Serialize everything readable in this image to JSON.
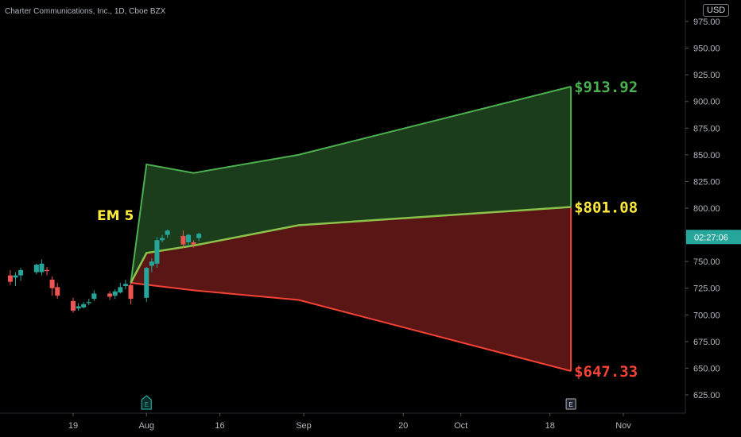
{
  "header": {
    "symbol_title": "Charter Communications, Inc., 1D, Cboe BZX",
    "currency": "USD"
  },
  "colors": {
    "background": "#000000",
    "axis_text": "#b2b5be",
    "up_candle": "#26a69a",
    "down_candle": "#ef5350",
    "upper_band_fill": "#1b3d1c",
    "lower_band_fill": "#5a1614",
    "upper_line": "#4caf50",
    "mid_line": "#8bc34a",
    "lower_line": "#f44336",
    "label_upper": "#4caf50",
    "label_mid": "#ffeb3b",
    "label_lower": "#f44336",
    "countdown_bg": "#26a69a"
  },
  "chart_data": {
    "type": "line",
    "y_axis": {
      "ticks": [
        "975.00",
        "950.00",
        "925.00",
        "900.00",
        "875.00",
        "850.00",
        "825.00",
        "800.00",
        "775.00",
        "750.00",
        "725.00",
        "700.00",
        "675.00",
        "650.00",
        "625.00"
      ],
      "range": [
        615,
        985
      ]
    },
    "x_axis": {
      "ticks": [
        {
          "label": "19",
          "date": "2021-07-19"
        },
        {
          "label": "Aug",
          "date": "2021-08-02"
        },
        {
          "label": "16",
          "date": "2021-08-16"
        },
        {
          "label": "Sep",
          "date": "2021-09-01"
        },
        {
          "label": "20",
          "date": "2021-09-20"
        },
        {
          "label": "Oct",
          "date": "2021-10-01"
        },
        {
          "label": "18",
          "date": "2021-10-18"
        },
        {
          "label": "Nov",
          "date": "2021-11-01"
        }
      ],
      "range": [
        "2021-07-07",
        "2021-11-07"
      ]
    },
    "candles": [
      {
        "date": "2021-07-07",
        "open": 737,
        "high": 742,
        "low": 728,
        "close": 731
      },
      {
        "date": "2021-07-08",
        "open": 735,
        "high": 740,
        "low": 727,
        "close": 737
      },
      {
        "date": "2021-07-09",
        "open": 737,
        "high": 744,
        "low": 732,
        "close": 742
      },
      {
        "date": "2021-07-12",
        "open": 740,
        "high": 748,
        "low": 738,
        "close": 747
      },
      {
        "date": "2021-07-13",
        "open": 740,
        "high": 752,
        "low": 737,
        "close": 748
      },
      {
        "date": "2021-07-14",
        "open": 742,
        "high": 745,
        "low": 737,
        "close": 741
      },
      {
        "date": "2021-07-15",
        "open": 733,
        "high": 736,
        "low": 718,
        "close": 725
      },
      {
        "date": "2021-07-16",
        "open": 726,
        "high": 730,
        "low": 715,
        "close": 718
      },
      {
        "date": "2021-07-19",
        "open": 713,
        "high": 716,
        "low": 702,
        "close": 704
      },
      {
        "date": "2021-07-20",
        "open": 706,
        "high": 711,
        "low": 704,
        "close": 708
      },
      {
        "date": "2021-07-21",
        "open": 707,
        "high": 712,
        "low": 706,
        "close": 710
      },
      {
        "date": "2021-07-22",
        "open": 711,
        "high": 715,
        "low": 709,
        "close": 712
      },
      {
        "date": "2021-07-23",
        "open": 715,
        "high": 723,
        "low": 713,
        "close": 720
      },
      {
        "date": "2021-07-26",
        "open": 720,
        "high": 722,
        "low": 714,
        "close": 717
      },
      {
        "date": "2021-07-27",
        "open": 718,
        "high": 724,
        "low": 715,
        "close": 722
      },
      {
        "date": "2021-07-28",
        "open": 721,
        "high": 730,
        "low": 720,
        "close": 726
      },
      {
        "date": "2021-07-29",
        "open": 727,
        "high": 733,
        "low": 724,
        "close": 729
      },
      {
        "date": "2021-07-30",
        "open": 728,
        "high": 730,
        "low": 710,
        "close": 715
      },
      {
        "date": "2021-08-02",
        "open": 716,
        "high": 745,
        "low": 712,
        "close": 744
      },
      {
        "date": "2021-08-03",
        "open": 746,
        "high": 753,
        "low": 740,
        "close": 750
      },
      {
        "date": "2021-08-04",
        "open": 748,
        "high": 773,
        "low": 744,
        "close": 770
      },
      {
        "date": "2021-08-05",
        "open": 770,
        "high": 775,
        "low": 768,
        "close": 772
      },
      {
        "date": "2021-08-06",
        "open": 775,
        "high": 780,
        "low": 772,
        "close": 779
      },
      {
        "date": "2021-08-09",
        "open": 774,
        "high": 779,
        "low": 763,
        "close": 766
      },
      {
        "date": "2021-08-10",
        "open": 768,
        "high": 776,
        "low": 764,
        "close": 775
      },
      {
        "date": "2021-08-11",
        "open": 768,
        "high": 770,
        "low": 763,
        "close": 766
      },
      {
        "date": "2021-08-12",
        "open": 772,
        "high": 777,
        "low": 769,
        "close": 776
      }
    ],
    "series": [
      {
        "points": [
          {
            "x": "2021-07-30",
            "y": 730
          },
          {
            "x": "2021-08-02",
            "y": 841
          },
          {
            "x": "2021-08-11",
            "y": 833
          },
          {
            "x": "2021-08-31",
            "y": 850
          },
          {
            "x": "2021-10-22",
            "y": 913.92
          }
        ]
      },
      {
        "points": [
          {
            "x": "2021-07-30",
            "y": 730
          },
          {
            "x": "2021-08-02",
            "y": 758
          },
          {
            "x": "2021-08-11",
            "y": 765
          },
          {
            "x": "2021-08-31",
            "y": 784
          },
          {
            "x": "2021-10-22",
            "y": 801.08
          }
        ]
      },
      {
        "points": [
          {
            "x": "2021-07-30",
            "y": 730
          },
          {
            "x": "2021-08-11",
            "y": 723
          },
          {
            "x": "2021-08-31",
            "y": 714
          },
          {
            "x": "2021-10-22",
            "y": 647.33
          }
        ]
      }
    ],
    "annotations": [
      {
        "text": "EM 5",
        "x": "2021-07-26",
        "y": 789
      },
      {
        "text": "$913.92",
        "x": "2021-10-22",
        "y": 913.92
      },
      {
        "text": "$801.08",
        "x": "2021-10-22",
        "y": 801.08
      },
      {
        "text": "$647.33",
        "x": "2021-10-22",
        "y": 647.33
      }
    ],
    "countdown_label": {
      "text": "02:27:06",
      "price": 773
    },
    "event_markers": [
      {
        "symbol": "E",
        "date": "2021-08-02"
      },
      {
        "symbol": "E",
        "date": "2021-10-22"
      }
    ],
    "grid": false,
    "legend": "none"
  }
}
